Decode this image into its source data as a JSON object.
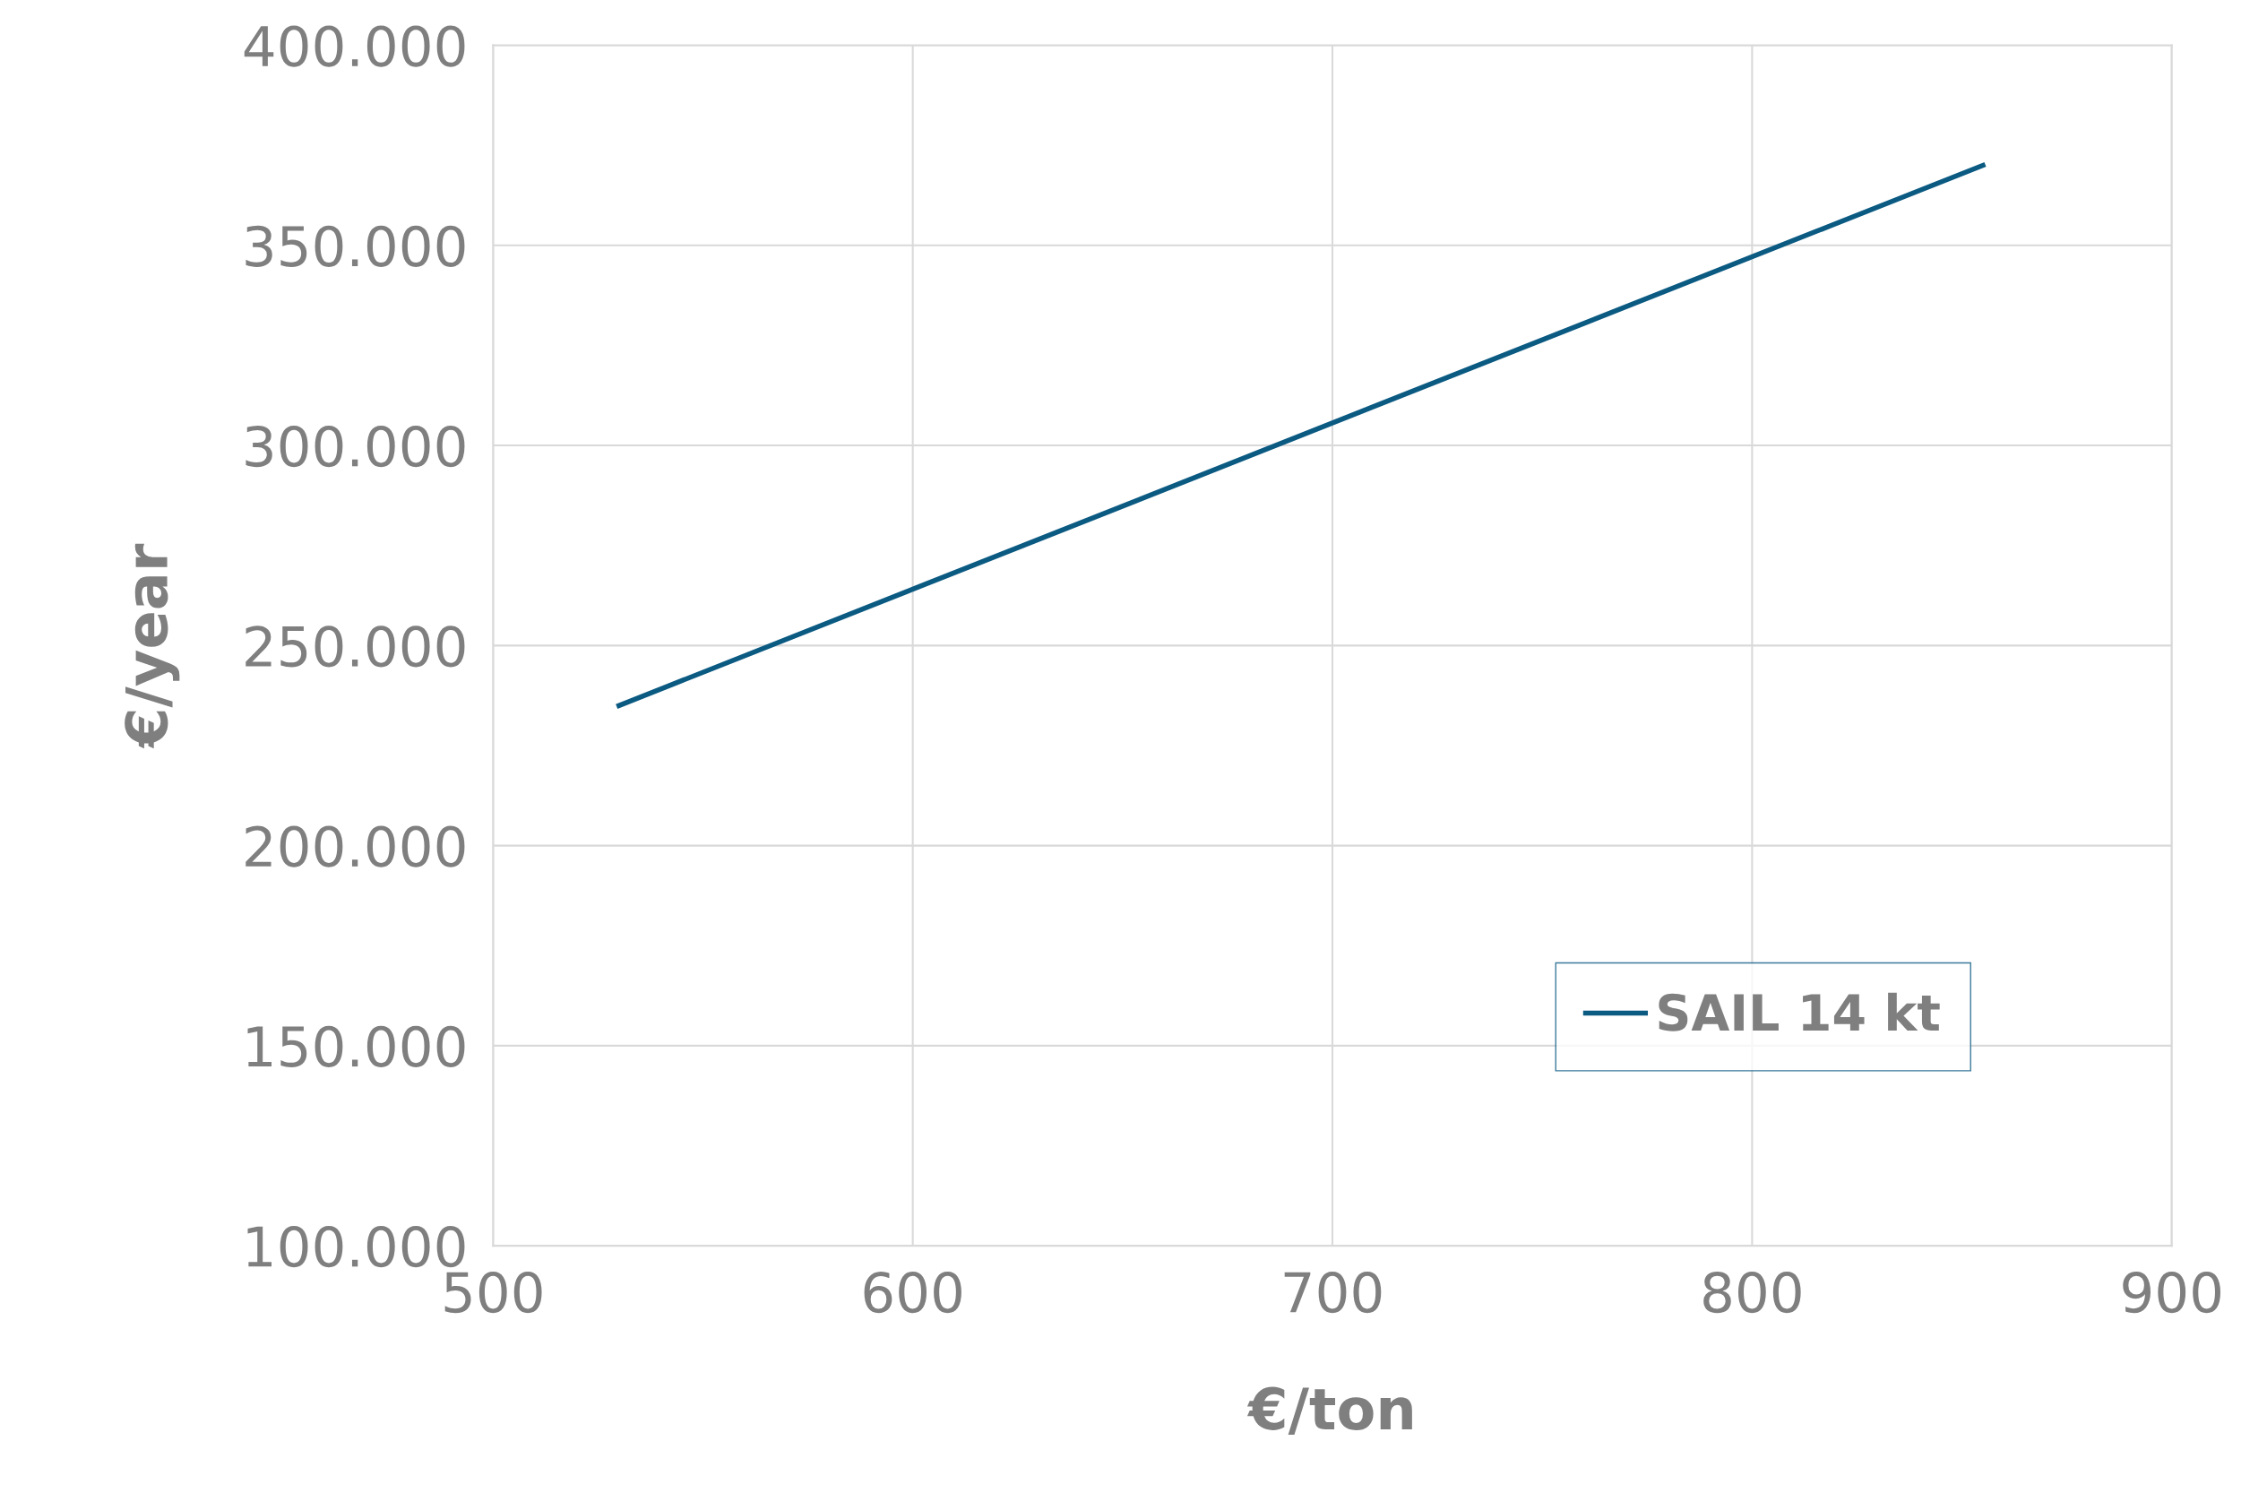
{
  "chart_data": {
    "type": "line",
    "xlabel": "€/ton",
    "ylabel": "€/year",
    "series": [
      {
        "name": "SAIL 14 kt",
        "color": "#0b5a82",
        "x": [
          530,
          855
        ],
        "values": [
          235000,
          370000
        ]
      }
    ],
    "xlim": [
      500,
      900
    ],
    "xticks": [
      500,
      600,
      700,
      800,
      900
    ],
    "ylim": [
      100000,
      400000
    ],
    "yticks": [
      {
        "value": 100000,
        "label": "100.000"
      },
      {
        "value": 150000,
        "label": "150.000"
      },
      {
        "value": 200000,
        "label": "200.000"
      },
      {
        "value": 250000,
        "label": "250.000"
      },
      {
        "value": 300000,
        "label": "300.000"
      },
      {
        "value": 350000,
        "label": "350.000"
      },
      {
        "value": 400000,
        "label": "400.000"
      }
    ],
    "grid": true,
    "legend": "bottom right",
    "marker": "none",
    "line_style": "solid"
  }
}
